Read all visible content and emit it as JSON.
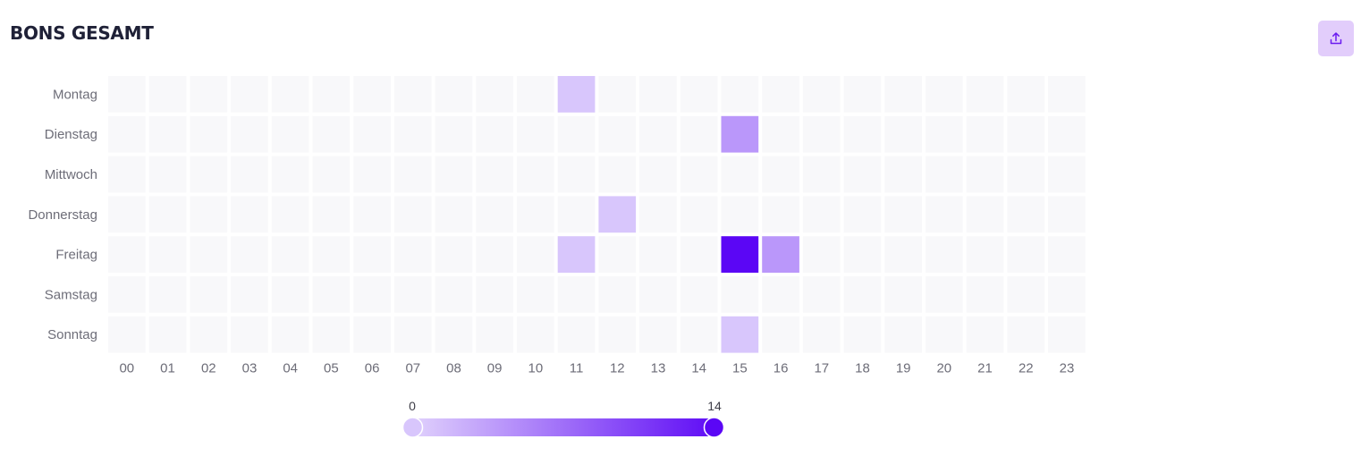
{
  "header": {
    "title": "BONS GESAMT",
    "export_icon": "share-upload-icon"
  },
  "colors": {
    "accent": "#5b06f5",
    "empty_cell": "#f8f8fa",
    "scale_min": "#d8c6fc",
    "scale_max": "#5b06f5",
    "export_bg": "#e2cdfb",
    "export_icon": "#6a1bf0"
  },
  "chart_data": {
    "type": "heatmap",
    "title": "BONS GESAMT",
    "y_categories": [
      "Montag",
      "Dienstag",
      "Mittwoch",
      "Donnerstag",
      "Freitag",
      "Samstag",
      "Sonntag"
    ],
    "x_categories": [
      "00",
      "01",
      "02",
      "03",
      "04",
      "05",
      "06",
      "07",
      "08",
      "09",
      "10",
      "11",
      "12",
      "13",
      "14",
      "15",
      "16",
      "17",
      "18",
      "19",
      "20",
      "21",
      "22",
      "23"
    ],
    "cells": [
      {
        "day": "Montag",
        "hour": "11",
        "value": 1
      },
      {
        "day": "Dienstag",
        "hour": "15",
        "value": 2
      },
      {
        "day": "Donnerstag",
        "hour": "12",
        "value": 1
      },
      {
        "day": "Freitag",
        "hour": "11",
        "value": 1
      },
      {
        "day": "Freitag",
        "hour": "15",
        "value": 14
      },
      {
        "day": "Freitag",
        "hour": "16",
        "value": 2
      },
      {
        "day": "Sonntag",
        "hour": "15",
        "value": 1
      }
    ],
    "visual_map": {
      "min": 0,
      "max": 14,
      "min_label": "0",
      "max_label": "14"
    }
  }
}
